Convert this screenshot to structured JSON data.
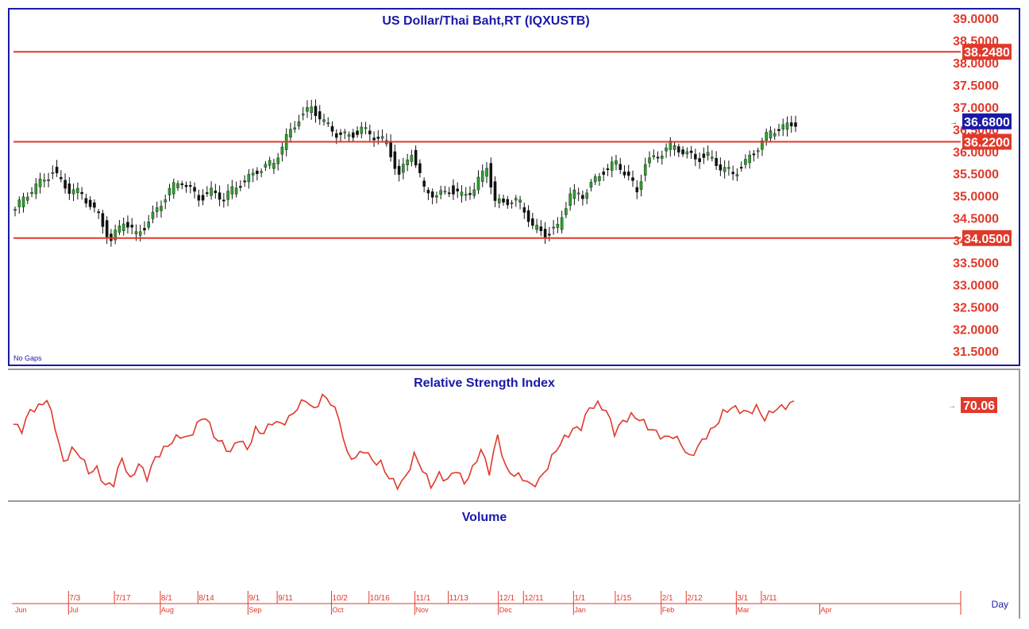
{
  "chart_data": [
    {
      "type": "candlestick",
      "title": "US  Dollar/Thai  Baht,RT  (IQXUSTB)",
      "note": "No  Gaps",
      "ylim": [
        31.2,
        39.2
      ],
      "y_ticks": [
        "39.0000",
        "38.5000",
        "38.0000",
        "37.5000",
        "37.0000",
        "36.5000",
        "36.0000",
        "35.5000",
        "35.0000",
        "34.5000",
        "34.0000",
        "33.5000",
        "33.0000",
        "32.5000",
        "32.0000",
        "31.5000"
      ],
      "horizontal_lines": [
        {
          "value": 38.248,
          "label": "38.2480"
        },
        {
          "value": 36.22,
          "label": "36.2200"
        },
        {
          "value": 34.05,
          "label": "34.0500"
        }
      ],
      "last_price": {
        "value": 36.68,
        "label": "36.6800"
      },
      "anchors": [
        [
          0,
          34.7
        ],
        [
          6,
          35.3
        ],
        [
          9,
          35.6
        ],
        [
          13,
          35.1
        ],
        [
          16,
          35.0
        ],
        [
          20,
          34.6
        ],
        [
          23,
          34.0
        ],
        [
          26,
          34.4
        ],
        [
          29,
          34.1
        ],
        [
          33,
          34.6
        ],
        [
          37,
          35.1
        ],
        [
          40,
          35.3
        ],
        [
          44,
          35.0
        ],
        [
          47,
          35.1
        ],
        [
          50,
          34.9
        ],
        [
          54,
          35.3
        ],
        [
          58,
          35.6
        ],
        [
          62,
          35.7
        ],
        [
          65,
          36.3
        ],
        [
          68,
          36.8
        ],
        [
          71,
          37.0
        ],
        [
          74,
          36.6
        ],
        [
          77,
          36.4
        ],
        [
          80,
          36.4
        ],
        [
          83,
          36.5
        ],
        [
          86,
          36.3
        ],
        [
          89,
          36.2
        ],
        [
          92,
          35.5
        ],
        [
          95,
          36.0
        ],
        [
          98,
          35.1
        ],
        [
          101,
          35.0
        ],
        [
          104,
          35.2
        ],
        [
          107,
          35.0
        ],
        [
          110,
          35.1
        ],
        [
          113,
          35.7
        ],
        [
          115,
          34.9
        ],
        [
          118,
          34.9
        ],
        [
          121,
          34.8
        ],
        [
          124,
          34.3
        ],
        [
          127,
          34.2
        ],
        [
          130,
          34.3
        ],
        [
          133,
          35.0
        ],
        [
          136,
          35.0
        ],
        [
          138,
          35.3
        ],
        [
          141,
          35.6
        ],
        [
          144,
          35.7
        ],
        [
          147,
          35.4
        ],
        [
          149,
          35.1
        ],
        [
          151,
          35.8
        ],
        [
          154,
          35.9
        ],
        [
          157,
          36.1
        ],
        [
          160,
          36.0
        ],
        [
          163,
          35.9
        ],
        [
          166,
          35.9
        ],
        [
          169,
          35.6
        ],
        [
          172,
          35.5
        ],
        [
          175,
          35.8
        ],
        [
          178,
          36.1
        ],
        [
          181,
          36.4
        ],
        [
          184,
          36.55
        ],
        [
          187,
          36.7
        ]
      ],
      "n_bars": 188
    },
    {
      "type": "line",
      "title": "Relative  Strength  Index",
      "last_value": {
        "value": 70.06,
        "label": "70.06"
      },
      "ylim": [
        10,
        95
      ],
      "anchors": [
        [
          0,
          62
        ],
        [
          2,
          58
        ],
        [
          4,
          72
        ],
        [
          6,
          74
        ],
        [
          8,
          80
        ],
        [
          10,
          60
        ],
        [
          12,
          34
        ],
        [
          14,
          44
        ],
        [
          16,
          40
        ],
        [
          18,
          28
        ],
        [
          20,
          30
        ],
        [
          22,
          18
        ],
        [
          24,
          20
        ],
        [
          26,
          38
        ],
        [
          28,
          22
        ],
        [
          30,
          34
        ],
        [
          32,
          24
        ],
        [
          34,
          38
        ],
        [
          36,
          44
        ],
        [
          38,
          50
        ],
        [
          40,
          54
        ],
        [
          42,
          52
        ],
        [
          44,
          62
        ],
        [
          46,
          68
        ],
        [
          48,
          54
        ],
        [
          50,
          48
        ],
        [
          52,
          42
        ],
        [
          54,
          52
        ],
        [
          56,
          44
        ],
        [
          58,
          58
        ],
        [
          60,
          56
        ],
        [
          62,
          64
        ],
        [
          64,
          62
        ],
        [
          66,
          66
        ],
        [
          68,
          74
        ],
        [
          70,
          80
        ],
        [
          72,
          72
        ],
        [
          74,
          82
        ],
        [
          76,
          78
        ],
        [
          78,
          66
        ],
        [
          80,
          40
        ],
        [
          82,
          38
        ],
        [
          84,
          44
        ],
        [
          86,
          36
        ],
        [
          88,
          34
        ],
        [
          90,
          24
        ],
        [
          92,
          18
        ],
        [
          94,
          24
        ],
        [
          96,
          40
        ],
        [
          98,
          30
        ],
        [
          100,
          18
        ],
        [
          102,
          26
        ],
        [
          104,
          22
        ],
        [
          106,
          30
        ],
        [
          108,
          20
        ],
        [
          110,
          30
        ],
        [
          112,
          44
        ],
        [
          114,
          28
        ],
        [
          116,
          54
        ],
        [
          118,
          30
        ],
        [
          120,
          26
        ],
        [
          122,
          24
        ],
        [
          124,
          18
        ],
        [
          126,
          22
        ],
        [
          128,
          32
        ],
        [
          130,
          44
        ],
        [
          132,
          52
        ],
        [
          134,
          58
        ],
        [
          136,
          60
        ],
        [
          138,
          74
        ],
        [
          140,
          76
        ],
        [
          142,
          72
        ],
        [
          144,
          56
        ],
        [
          146,
          64
        ],
        [
          148,
          68
        ],
        [
          150,
          66
        ],
        [
          152,
          60
        ],
        [
          154,
          56
        ],
        [
          156,
          52
        ],
        [
          158,
          54
        ],
        [
          160,
          48
        ],
        [
          162,
          38
        ],
        [
          164,
          46
        ],
        [
          166,
          54
        ],
        [
          168,
          60
        ],
        [
          170,
          70
        ],
        [
          172,
          74
        ],
        [
          174,
          72
        ],
        [
          176,
          70
        ],
        [
          178,
          74
        ],
        [
          180,
          66
        ],
        [
          182,
          72
        ],
        [
          184,
          74
        ],
        [
          186,
          76
        ],
        [
          187,
          78
        ]
      ]
    },
    {
      "type": "bar",
      "title": "Volume",
      "values": []
    }
  ],
  "time_axis": {
    "week_labels": [
      {
        "label": "7/3",
        "bar": 5
      },
      {
        "label": "7/17",
        "bar": 16
      },
      {
        "label": "8/1",
        "bar": 27
      },
      {
        "label": "8/14",
        "bar": 36
      },
      {
        "label": "9/1",
        "bar": 48
      },
      {
        "label": "9/11",
        "bar": 55
      },
      {
        "label": "10/2",
        "bar": 68
      },
      {
        "label": "10/16",
        "bar": 77
      },
      {
        "label": "11/1",
        "bar": 88
      },
      {
        "label": "11/13",
        "bar": 96
      },
      {
        "label": "12/1",
        "bar": 108
      },
      {
        "label": "12/11",
        "bar": 114
      },
      {
        "label": "1/1",
        "bar": 126
      },
      {
        "label": "1/15",
        "bar": 136
      },
      {
        "label": "2/1",
        "bar": 147
      },
      {
        "label": "2/12",
        "bar": 153
      },
      {
        "label": "3/1",
        "bar": 165
      },
      {
        "label": "3/11",
        "bar": 171
      }
    ],
    "month_labels": [
      {
        "label": "Jun",
        "bar": 0
      },
      {
        "label": "Jul",
        "bar": 5
      },
      {
        "label": "Aug",
        "bar": 27
      },
      {
        "label": "Sep",
        "bar": 48
      },
      {
        "label": "Oct",
        "bar": 68
      },
      {
        "label": "Nov",
        "bar": 88
      },
      {
        "label": "Dec",
        "bar": 108
      },
      {
        "label": "Jan",
        "bar": 126
      },
      {
        "label": "Feb",
        "bar": 147
      },
      {
        "label": "Mar",
        "bar": 165
      },
      {
        "label": "Apr",
        "bar": 185
      }
    ],
    "periodicity": "Day"
  },
  "colors": {
    "accent_red": "#e0392b",
    "title_blue": "#1a1aa8",
    "last_tag_blue": "#1a1aa8",
    "up_candle": "#2ca02c",
    "down_candle": "#111111"
  }
}
